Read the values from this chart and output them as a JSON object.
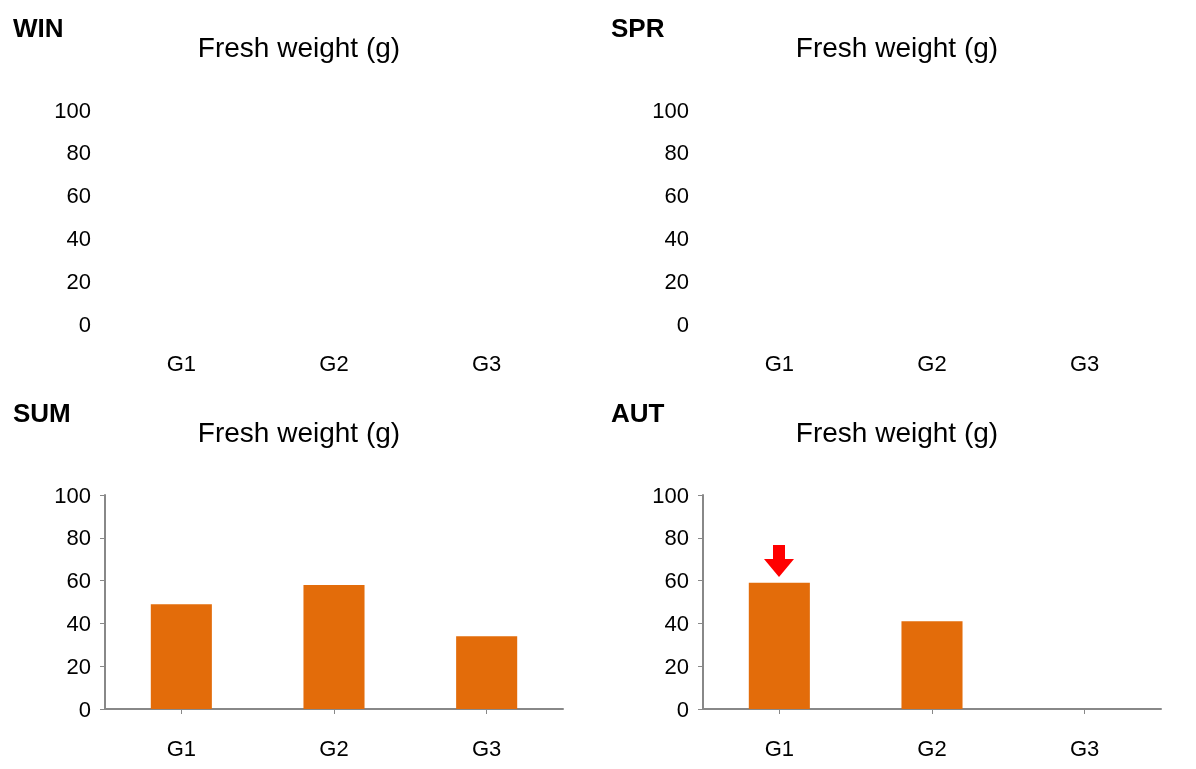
{
  "chart_data": [
    {
      "type": "bar",
      "title": "WIN",
      "subtitle": "Fresh weight (g)",
      "categories": [
        "G1",
        "G2",
        "G3"
      ],
      "values": [
        null,
        null,
        null
      ],
      "color": "#e36c0a",
      "ylim": [
        0,
        100
      ],
      "yticks": [
        0,
        20,
        40,
        60,
        80,
        100
      ],
      "grid": false
    },
    {
      "type": "bar",
      "title": "SPR",
      "subtitle": "Fresh weight (g)",
      "categories": [
        "G1",
        "G2",
        "G3"
      ],
      "values": [
        null,
        null,
        null
      ],
      "color": "#e36c0a",
      "ylim": [
        0,
        100
      ],
      "yticks": [
        0,
        20,
        40,
        60,
        80,
        100
      ],
      "grid": false
    },
    {
      "type": "bar",
      "title": "SUM",
      "subtitle": "Fresh weight (g)",
      "categories": [
        "G1",
        "G2",
        "G3"
      ],
      "values": [
        49,
        58,
        34
      ],
      "color": "#e36c0a",
      "ylim": [
        0,
        100
      ],
      "yticks": [
        0,
        20,
        40,
        60,
        80,
        100
      ],
      "grid": false
    },
    {
      "type": "bar",
      "title": "AUT",
      "subtitle": "Fresh weight (g)",
      "categories": [
        "G1",
        "G2",
        "G3"
      ],
      "values": [
        59,
        41,
        null
      ],
      "color": "#e36c0a",
      "ylim": [
        0,
        100
      ],
      "yticks": [
        0,
        20,
        40,
        60,
        80,
        100
      ],
      "grid": false
    }
  ]
}
